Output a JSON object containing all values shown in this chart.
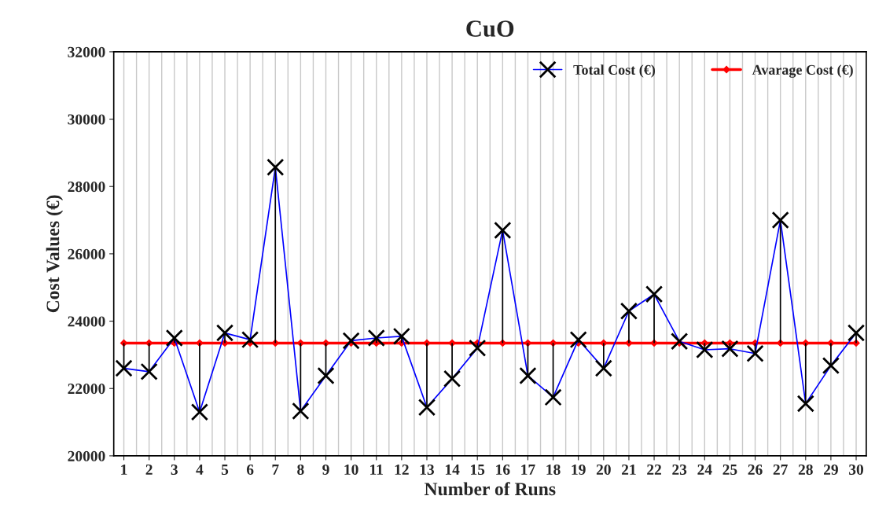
{
  "chart_data": {
    "type": "line",
    "title": "CuO",
    "xlabel": "Number of Runs",
    "ylabel": "Cost Values (€)",
    "categories": [
      "1",
      "2",
      "3",
      "4",
      "5",
      "6",
      "7",
      "8",
      "9",
      "10",
      "11",
      "12",
      "13",
      "14",
      "15",
      "16",
      "17",
      "18",
      "19",
      "20",
      "21",
      "22",
      "23",
      "24",
      "25",
      "26",
      "27",
      "28",
      "29",
      "30"
    ],
    "series": [
      {
        "name": "Total Cost (€)",
        "color": "#0000ff",
        "marker": "cross",
        "values": [
          22600,
          22500,
          23500,
          21300,
          23650,
          23450,
          28570,
          21330,
          22380,
          23420,
          23500,
          23550,
          21440,
          22290,
          23200,
          26700,
          22380,
          21740,
          23450,
          22600,
          24300,
          24800,
          23400,
          23150,
          23180,
          23040,
          27000,
          21550,
          22680,
          23650
        ],
        "errors": [
          [
            22600,
            23350
          ],
          [
            22500,
            23350
          ],
          [
            23350,
            23500
          ],
          [
            21300,
            23350
          ],
          [
            23350,
            23650
          ],
          [
            23350,
            23450
          ],
          [
            23350,
            28570
          ],
          [
            21330,
            23350
          ],
          [
            22380,
            23350
          ],
          [
            23350,
            23420
          ],
          [
            23350,
            23500
          ],
          [
            23350,
            23550
          ],
          [
            21440,
            23350
          ],
          [
            22290,
            23350
          ],
          [
            23200,
            23350
          ],
          [
            23350,
            26700
          ],
          [
            22380,
            23350
          ],
          [
            21740,
            23350
          ],
          [
            23350,
            23450
          ],
          [
            22600,
            23350
          ],
          [
            23350,
            24300
          ],
          [
            23350,
            24800
          ],
          [
            23350,
            23400
          ],
          [
            23150,
            23350
          ],
          [
            23180,
            23350
          ],
          [
            23040,
            23350
          ],
          [
            23350,
            27000
          ],
          [
            21550,
            23350
          ],
          [
            22680,
            23350
          ],
          [
            23350,
            23650
          ]
        ]
      },
      {
        "name": "Avarage Cost (€)",
        "color": "#ff0000",
        "marker": "diamond",
        "values": [
          23350,
          23350,
          23350,
          23350,
          23350,
          23350,
          23350,
          23350,
          23350,
          23350,
          23350,
          23350,
          23350,
          23350,
          23350,
          23350,
          23350,
          23350,
          23350,
          23350,
          23350,
          23350,
          23350,
          23350,
          23350,
          23350,
          23350,
          23350,
          23350,
          23350
        ]
      }
    ],
    "ylim": [
      20000,
      32000
    ],
    "yticks": [
      20000,
      22000,
      24000,
      26000,
      28000,
      30000,
      32000
    ],
    "grid": "x",
    "legend": "top right"
  }
}
